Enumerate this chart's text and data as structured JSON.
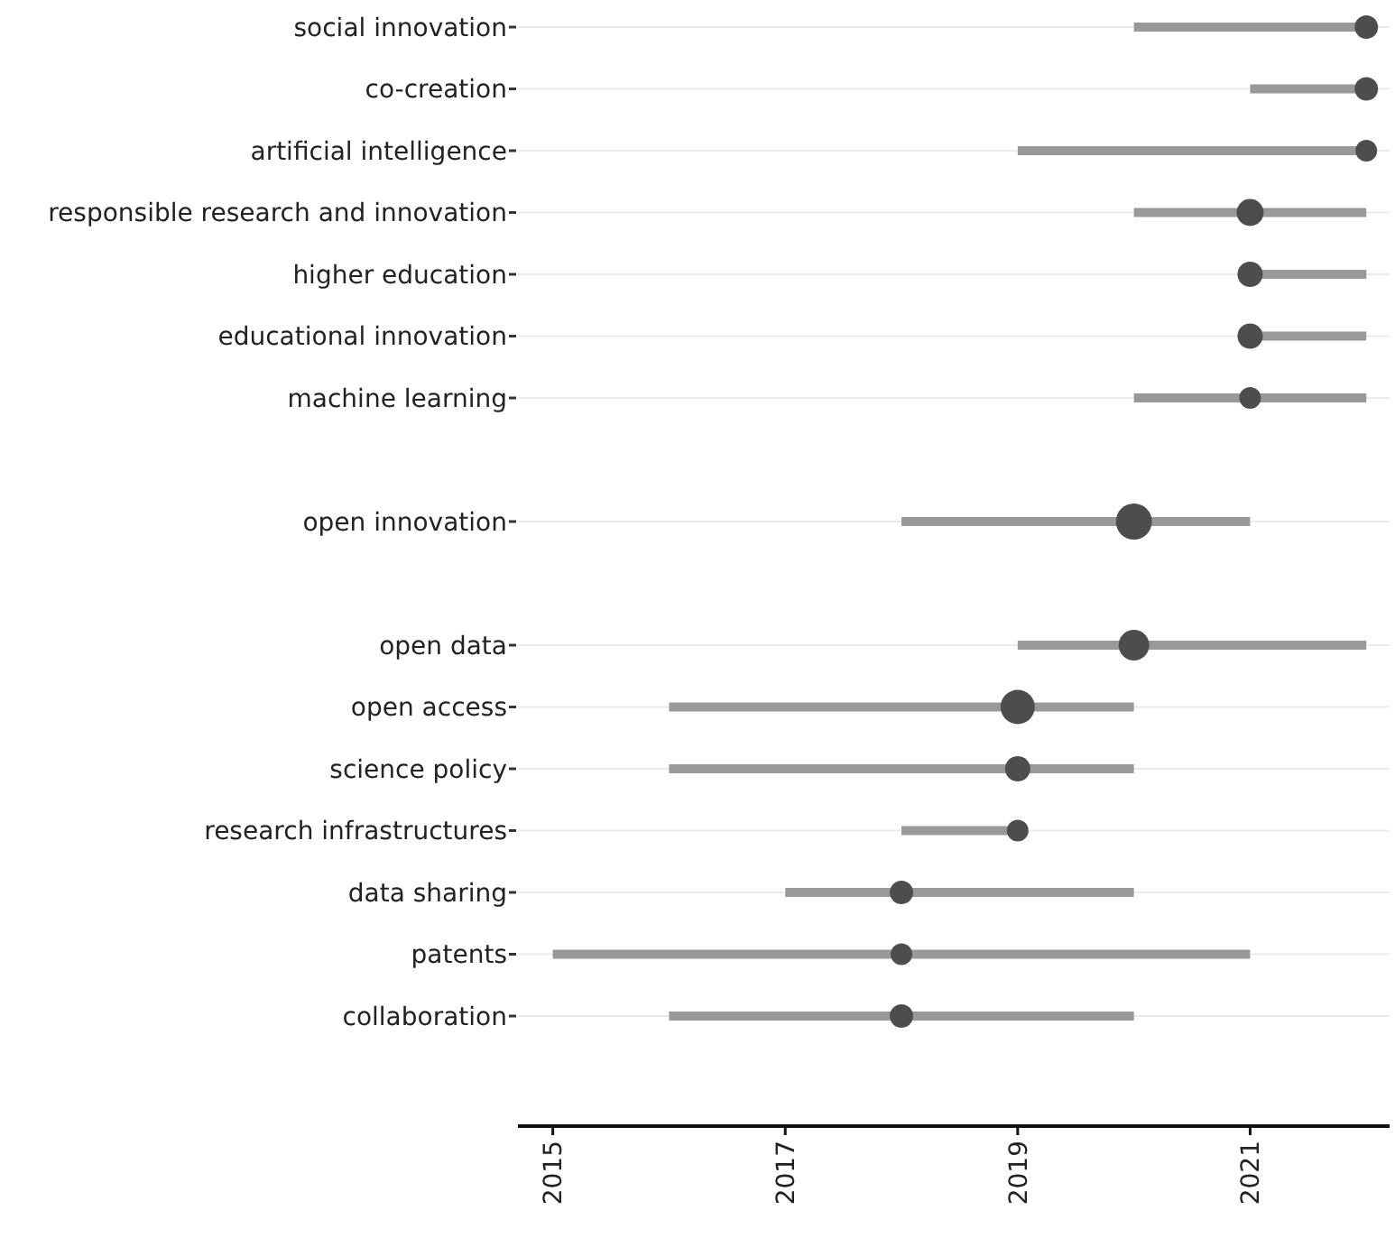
{
  "chart_data": {
    "type": "bubble",
    "orientation": "horizontal",
    "categories": [
      "social innovation",
      "co-creation",
      "artificial intelligence",
      "responsible research and innovation",
      "higher education",
      "educational innovation",
      "machine learning",
      null,
      "open innovation",
      null,
      "open data",
      "open access",
      "science policy",
      "research infrastructures",
      "data sharing",
      "patents",
      "collaboration"
    ],
    "series": [
      {
        "color": "#4d4d4d",
        "values": [
          2022,
          2022,
          2022,
          2021,
          2021,
          2021,
          2021,
          null,
          2020,
          null,
          2020,
          2019,
          2019,
          2019,
          2018,
          2018,
          2018
        ],
        "sizes": [
          0.42,
          0.42,
          0.36,
          0.56,
          0.49,
          0.49,
          0.36,
          null,
          1,
          null,
          0.72,
          0.9,
          0.49,
          0.36,
          0.42,
          0.36,
          0.42
        ],
        "errors": [
          [
            2020,
            2022
          ],
          [
            2021,
            2022
          ],
          [
            2019,
            2022
          ],
          [
            2020,
            2022
          ],
          [
            2021,
            2022
          ],
          [
            2021,
            2022
          ],
          [
            2020,
            2022
          ],
          null,
          [
            2018,
            2021
          ],
          null,
          [
            2019,
            2022
          ],
          [
            2016,
            2020
          ],
          [
            2016,
            2020
          ],
          [
            2018,
            2019
          ],
          [
            2017,
            2020
          ],
          [
            2015,
            2021
          ],
          [
            2016,
            2020
          ]
        ]
      }
    ],
    "xlim": [
      2014.7,
      2022.2
    ],
    "xticks": [
      2015,
      2017,
      2019,
      2021
    ],
    "grid": "y"
  }
}
